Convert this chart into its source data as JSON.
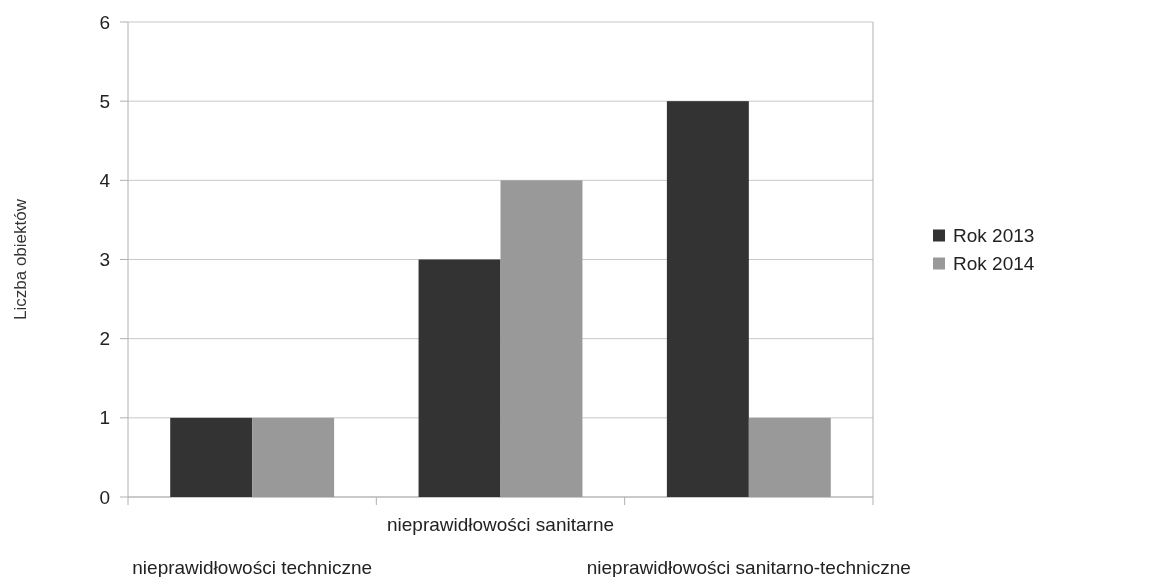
{
  "chart_data": {
    "type": "bar",
    "ylabel": "Liczba obiektów",
    "categories": [
      "nieprawidłowości techniczne",
      "nieprawidłowości sanitarne",
      "nieprawidłowości sanitarno-techniczne"
    ],
    "series": [
      {
        "name": "Rok 2013",
        "color": "#333333",
        "values": [
          1,
          3,
          5
        ]
      },
      {
        "name": "Rok 2014",
        "color": "#999999",
        "values": [
          1,
          4,
          1
        ]
      }
    ],
    "ylim": [
      0,
      6
    ],
    "yticks": [
      0,
      1,
      2,
      3,
      4,
      5,
      6
    ],
    "grid": "y",
    "legend": "right"
  }
}
